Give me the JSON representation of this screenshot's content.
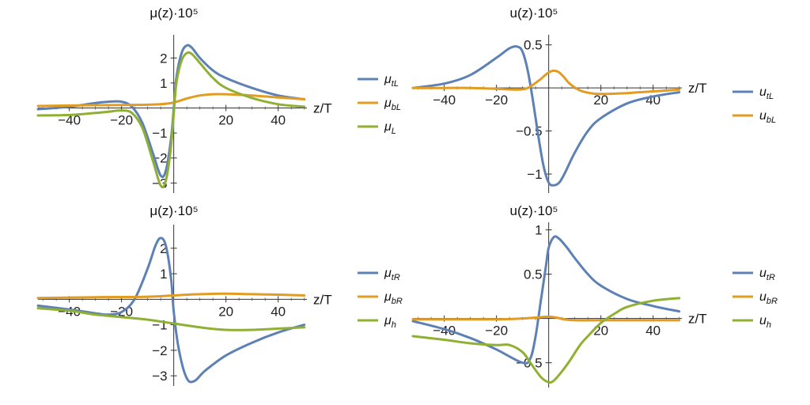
{
  "chart_data": [
    {
      "type": "line",
      "title": "μ(z)·10⁵",
      "xlabel": "z/T",
      "ylabel": "",
      "xlim": [
        -52,
        51
      ],
      "ylim": [
        -3.4,
        2.8
      ],
      "xticks": [
        -40,
        -20,
        20,
        40
      ],
      "yticks": [
        -3,
        -2,
        -1,
        1,
        2
      ],
      "grid": false,
      "legend": "right",
      "series": [
        {
          "name": "μ_tL",
          "color": "#5E81B5",
          "x": [
            -52,
            -40,
            -30,
            -25,
            -20,
            -16,
            -12,
            -8,
            -5,
            -3,
            -1,
            0,
            1,
            3,
            5,
            7,
            10,
            15,
            20,
            30,
            40,
            50
          ],
          "y": [
            -0.05,
            0.05,
            0.2,
            0.25,
            0.25,
            0.05,
            -0.6,
            -1.8,
            -2.7,
            -2.5,
            -1.2,
            0,
            1.2,
            2.2,
            2.5,
            2.4,
            2.0,
            1.5,
            1.2,
            0.8,
            0.5,
            0.35
          ]
        },
        {
          "name": "μ_bL",
          "color": "#E19C24",
          "x": [
            -52,
            -40,
            -20,
            -10,
            -5,
            0,
            5,
            10,
            15,
            20,
            30,
            40,
            50
          ],
          "y": [
            0.08,
            0.1,
            0.12,
            0.13,
            0.15,
            0.22,
            0.38,
            0.5,
            0.55,
            0.55,
            0.5,
            0.42,
            0.35
          ]
        },
        {
          "name": "μ_L",
          "color": "#8FB032",
          "x": [
            -52,
            -40,
            -30,
            -25,
            -20,
            -16,
            -12,
            -8,
            -5,
            -3,
            -1,
            0,
            1,
            3,
            5,
            7,
            10,
            15,
            20,
            30,
            40,
            50
          ],
          "y": [
            -0.3,
            -0.28,
            -0.2,
            -0.15,
            -0.1,
            -0.2,
            -0.8,
            -2.1,
            -3.1,
            -2.9,
            -1.5,
            -0.2,
            1.0,
            1.9,
            2.2,
            2.15,
            1.8,
            1.2,
            0.8,
            0.4,
            0.15,
            0.05
          ]
        }
      ]
    },
    {
      "type": "line",
      "title": "u(z)·10⁵",
      "xlabel": "z/T",
      "ylabel": "",
      "xlim": [
        -52,
        51
      ],
      "ylim": [
        -1.22,
        0.58
      ],
      "xticks": [
        -40,
        -20,
        20,
        40
      ],
      "yticks": [
        -1.0,
        -0.5,
        0.5
      ],
      "grid": false,
      "legend": "right",
      "series": [
        {
          "name": "u_tL",
          "color": "#5E81B5",
          "x": [
            -52,
            -40,
            -30,
            -20,
            -15,
            -12,
            -10,
            -8,
            -6,
            -4,
            -2,
            0,
            2,
            4,
            6,
            10,
            15,
            20,
            30,
            40,
            50
          ],
          "y": [
            0.0,
            0.05,
            0.15,
            0.35,
            0.46,
            0.48,
            0.42,
            0.2,
            -0.15,
            -0.55,
            -0.9,
            -1.1,
            -1.13,
            -1.1,
            -1.0,
            -0.75,
            -0.5,
            -0.35,
            -0.18,
            -0.1,
            -0.05
          ]
        },
        {
          "name": "u_bL",
          "color": "#E19C24",
          "x": [
            -52,
            -40,
            -30,
            -20,
            -12,
            -8,
            -4,
            -2,
            0,
            2,
            4,
            6,
            8,
            12,
            16,
            20,
            30,
            40,
            50
          ],
          "y": [
            0.0,
            0.0,
            0.0,
            -0.01,
            -0.02,
            0.0,
            0.08,
            0.13,
            0.18,
            0.2,
            0.18,
            0.12,
            0.05,
            -0.03,
            -0.06,
            -0.07,
            -0.06,
            -0.04,
            -0.02
          ]
        }
      ]
    },
    {
      "type": "line",
      "title": "μ(z)·10⁵",
      "xlabel": "z/T",
      "ylabel": "",
      "xlim": [
        -52,
        51
      ],
      "ylim": [
        -3.4,
        2.8
      ],
      "xticks": [
        -40,
        -20,
        20,
        40
      ],
      "yticks": [
        -3,
        -2,
        -1,
        1,
        2
      ],
      "grid": false,
      "legend": "right",
      "series": [
        {
          "name": "μ_tR",
          "color": "#5E81B5",
          "x": [
            -52,
            -40,
            -30,
            -25,
            -20,
            -15,
            -10,
            -7,
            -5,
            -3,
            -1,
            0,
            2,
            5,
            8,
            12,
            20,
            30,
            40,
            50
          ],
          "y": [
            -0.25,
            -0.4,
            -0.55,
            -0.6,
            -0.5,
            0.0,
            1.2,
            2.1,
            2.4,
            2.1,
            0.8,
            -0.5,
            -2.0,
            -3.1,
            -3.2,
            -2.8,
            -2.2,
            -1.7,
            -1.3,
            -1.0
          ]
        },
        {
          "name": "μ_bR",
          "color": "#E19C24",
          "x": [
            -52,
            -30,
            -10,
            0,
            10,
            20,
            30,
            40,
            50
          ],
          "y": [
            0.05,
            0.08,
            0.1,
            0.15,
            0.2,
            0.22,
            0.2,
            0.18,
            0.15
          ]
        },
        {
          "name": "μ_h",
          "color": "#8FB032",
          "x": [
            -52,
            -40,
            -30,
            -20,
            -10,
            0,
            10,
            20,
            30,
            40,
            50
          ],
          "y": [
            -0.35,
            -0.45,
            -0.6,
            -0.7,
            -0.8,
            -0.95,
            -1.1,
            -1.2,
            -1.2,
            -1.15,
            -1.1
          ]
        }
      ]
    },
    {
      "type": "line",
      "title": "u(z)·10⁵",
      "xlabel": "z/T",
      "ylabel": "",
      "xlim": [
        -52,
        51
      ],
      "ylim": [
        -0.78,
        1.05
      ],
      "xticks": [
        -40,
        -20,
        20,
        40
      ],
      "yticks": [
        -0.5,
        0.5,
        1.0
      ],
      "grid": false,
      "legend": "right",
      "series": [
        {
          "name": "u_tR",
          "color": "#5E81B5",
          "x": [
            -52,
            -40,
            -30,
            -20,
            -10,
            -7,
            -5,
            -3,
            -1,
            0,
            2,
            4,
            7,
            10,
            15,
            20,
            30,
            40,
            50
          ],
          "y": [
            -0.03,
            -0.12,
            -0.22,
            -0.35,
            -0.5,
            -0.45,
            -0.2,
            0.2,
            0.6,
            0.8,
            0.92,
            0.9,
            0.8,
            0.68,
            0.5,
            0.37,
            0.22,
            0.14,
            0.08
          ]
        },
        {
          "name": "u_bR",
          "color": "#E19C24",
          "x": [
            -52,
            -20,
            -10,
            -5,
            0,
            3,
            6,
            10,
            20,
            50
          ],
          "y": [
            -0.01,
            -0.01,
            0.0,
            0.01,
            0.02,
            0.01,
            -0.01,
            -0.02,
            -0.02,
            -0.02
          ]
        },
        {
          "name": "u_h",
          "color": "#8FB032",
          "x": [
            -52,
            -40,
            -30,
            -20,
            -15,
            -10,
            -7,
            -3,
            0,
            2,
            5,
            8,
            12,
            15,
            20,
            25,
            30,
            40,
            50
          ],
          "y": [
            -0.2,
            -0.24,
            -0.28,
            -0.3,
            -0.3,
            -0.38,
            -0.5,
            -0.66,
            -0.72,
            -0.7,
            -0.6,
            -0.48,
            -0.3,
            -0.2,
            -0.05,
            0.05,
            0.13,
            0.2,
            0.23
          ]
        }
      ]
    }
  ]
}
